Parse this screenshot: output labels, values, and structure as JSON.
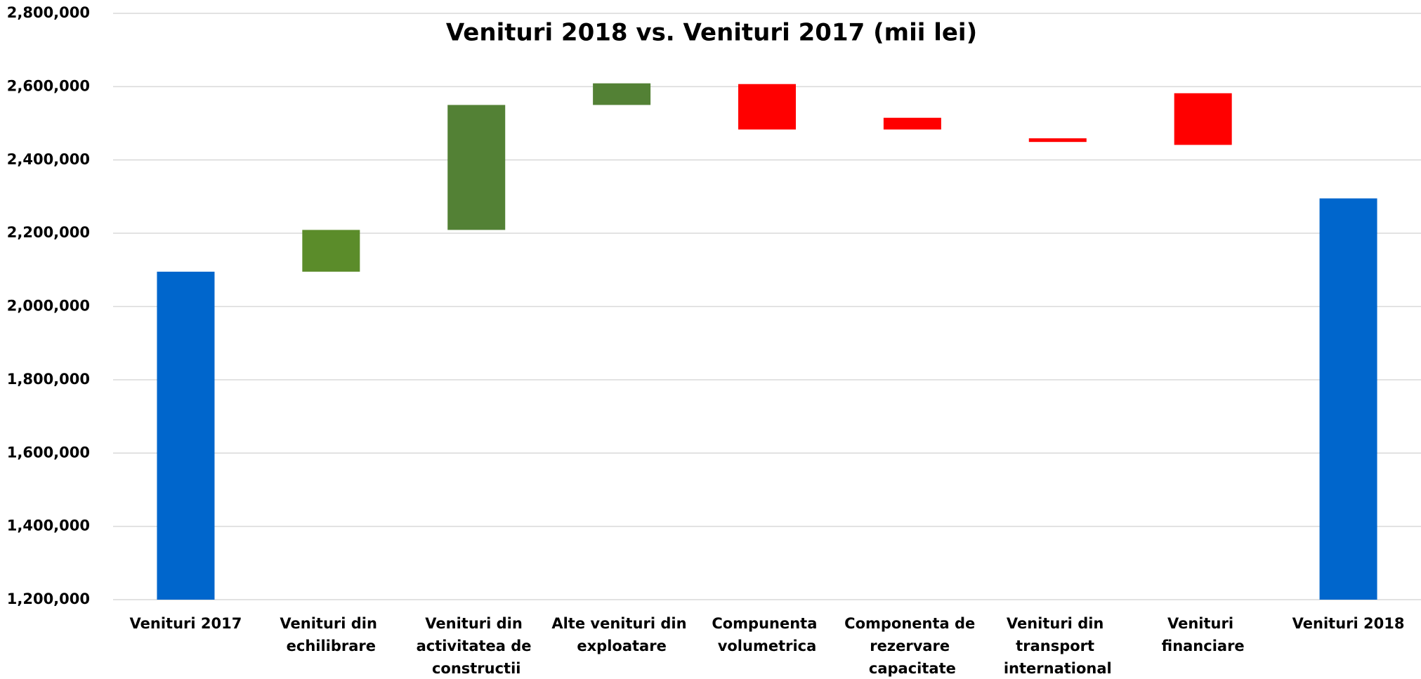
{
  "chart_data": {
    "type": "waterfall",
    "title": "Venituri 2018 vs. Venituri 2017 (mii lei)",
    "categories": [
      "Venituri 2017",
      "Venituri din echilibrare",
      "Venituri din activitatea de constructii",
      "Alte venituri din exploatare",
      "Compunenta volumetrica",
      "Componenta de rezervare capacitate",
      "Venituri din transport international",
      "Venituri financiare",
      "Venituri 2018"
    ],
    "base": [
      0,
      2095000,
      2209000,
      2550000,
      2483000,
      2483000,
      2449000,
      2441000,
      0
    ],
    "values": [
      2095000,
      114000,
      341000,
      59000,
      124000,
      32000,
      10000,
      141000,
      2295000
    ],
    "colors": [
      "#0066cc",
      "#5b8c2a",
      "#538135",
      "#538135",
      "#ff0000",
      "#ff0000",
      "#ff0000",
      "#ff0000",
      "#0066cc"
    ],
    "ylim": [
      1200000,
      2800000
    ],
    "yticks": [
      {
        "value": 1200000,
        "label": "1,200,000"
      },
      {
        "value": 1400000,
        "label": "1,400,000"
      },
      {
        "value": 1600000,
        "label": "1,600,000"
      },
      {
        "value": 1800000,
        "label": "1,800,000"
      },
      {
        "value": 2000000,
        "label": "2,000,000"
      },
      {
        "value": 2200000,
        "label": "2,200,000"
      },
      {
        "value": 2400000,
        "label": "2,400,000"
      },
      {
        "value": 2600000,
        "label": "2,600,000"
      },
      {
        "value": 2800000,
        "label": "2,800,000"
      }
    ],
    "grid": true
  }
}
